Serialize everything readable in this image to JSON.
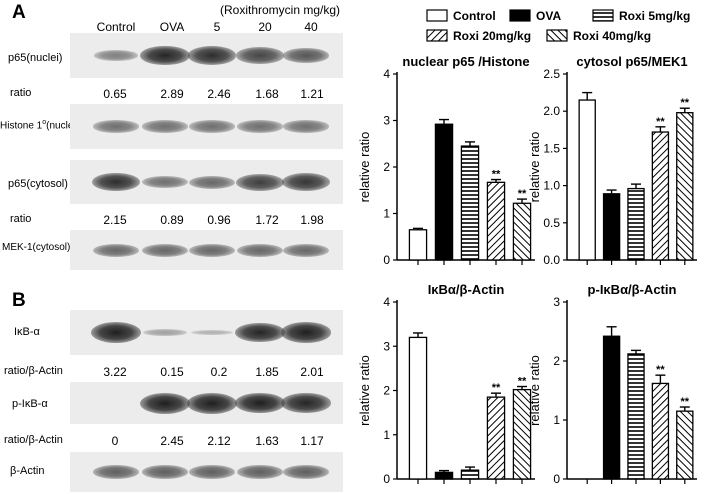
{
  "panelA": {
    "letter": "A",
    "header_label": "(Roxithromycin mg/kg)",
    "lanes": [
      "Control",
      "OVA",
      "5",
      "20",
      "40"
    ],
    "row_labels": {
      "p65_nuclei": "p65(nuclei)",
      "ratio1": "ratio",
      "histone": "Histone 1",
      "histone_sup": "o",
      "histone_suffix": "(nuclei)",
      "p65_cytosol": "p65(cytosol)",
      "ratio2": "ratio",
      "mek": "MEK-1(cytosol)"
    },
    "ratios_nuclear": [
      "0.65",
      "2.89",
      "2.46",
      "1.68",
      "1.21"
    ],
    "ratios_cytosol": [
      "2.15",
      "0.89",
      "0.96",
      "1.72",
      "1.98"
    ]
  },
  "panelB": {
    "letter": "B",
    "row_labels": {
      "ikb": "IκB-α",
      "ratio1": "ratio/β-Actin",
      "pikb": "p-IκB-α",
      "ratio2": "ratio/β-Actin",
      "actin": "β-Actin"
    },
    "ratios_ikb": [
      "3.22",
      "0.15",
      "0.2",
      "1.85",
      "2.01"
    ],
    "ratios_pikb": [
      "0",
      "2.45",
      "2.12",
      "1.63",
      "1.17"
    ]
  },
  "blot_intensity": {
    "p65_nuclei": [
      0.35,
      0.9,
      0.85,
      0.7,
      0.6
    ],
    "histone": [
      0.45,
      0.45,
      0.45,
      0.45,
      0.45
    ],
    "p65_cytosol": [
      0.85,
      0.45,
      0.5,
      0.75,
      0.8
    ],
    "mek": [
      0.5,
      0.5,
      0.5,
      0.5,
      0.5
    ],
    "ikb": [
      1.0,
      0.15,
      0.05,
      0.9,
      0.95
    ],
    "pikb": [
      0.0,
      1.0,
      1.0,
      0.95,
      0.9
    ],
    "actin": [
      0.55,
      0.55,
      0.55,
      0.55,
      0.55
    ]
  },
  "legend": {
    "items": [
      {
        "label": "Control",
        "fill": "white"
      },
      {
        "label": "OVA",
        "fill": "black"
      },
      {
        "label": "Roxi 5mg/kg",
        "fill": "hlines"
      },
      {
        "label": "Roxi 20mg/kg",
        "fill": "hatch"
      },
      {
        "label": "Roxi 40mg/kg",
        "fill": "hatch2"
      }
    ]
  },
  "chart_data": [
    {
      "type": "bar",
      "title": "nuclear p65 /Histone",
      "ylabel": "relative ratio",
      "categories": [
        "Control",
        "OVA",
        "Roxi 5mg/kg",
        "Roxi 20mg/kg",
        "Roxi 40mg/kg"
      ],
      "values": [
        0.65,
        2.92,
        2.45,
        1.67,
        1.22
      ],
      "errors": [
        0.03,
        0.1,
        0.09,
        0.06,
        0.09
      ],
      "annotations": [
        "",
        "",
        "",
        "**",
        "**"
      ],
      "ylim": [
        0,
        4
      ],
      "yticks": [
        "0",
        "1",
        "2",
        "3",
        "4"
      ],
      "ytick_values": [
        0,
        1,
        2,
        3,
        4
      ],
      "fills": [
        "white",
        "black",
        "hlines",
        "hatch",
        "hatch2"
      ]
    },
    {
      "type": "bar",
      "title": "cytosol p65/MEK1",
      "ylabel": "relative ratio",
      "categories": [
        "Control",
        "OVA",
        "Roxi 5mg/kg",
        "Roxi 20mg/kg",
        "Roxi 40mg/kg"
      ],
      "values": [
        2.15,
        0.89,
        0.96,
        1.72,
        1.98
      ],
      "errors": [
        0.1,
        0.05,
        0.06,
        0.07,
        0.06
      ],
      "annotations": [
        "",
        "",
        "",
        "**",
        "**"
      ],
      "ylim": [
        0,
        2.5
      ],
      "yticks": [
        "0.0",
        "0.5",
        "1.0",
        "1.5",
        "2.0",
        "2.5"
      ],
      "ytick_values": [
        0,
        0.5,
        1,
        1.5,
        2,
        2.5
      ],
      "fills": [
        "white",
        "black",
        "hlines",
        "hatch",
        "hatch2"
      ]
    },
    {
      "type": "bar",
      "title": "IκBα/β-Actin",
      "ylabel": "relative ratio",
      "categories": [
        "Control",
        "OVA",
        "Roxi 5mg/kg",
        "Roxi 20mg/kg",
        "Roxi 40mg/kg"
      ],
      "values": [
        3.2,
        0.15,
        0.2,
        1.85,
        2.02
      ],
      "errors": [
        0.1,
        0.04,
        0.07,
        0.09,
        0.07
      ],
      "annotations": [
        "",
        "",
        "",
        "**",
        "**"
      ],
      "ylim": [
        0,
        4
      ],
      "yticks": [
        "0",
        "1",
        "2",
        "3",
        "4"
      ],
      "ytick_values": [
        0,
        1,
        2,
        3,
        4
      ],
      "fills": [
        "white",
        "black",
        "hlines",
        "hatch",
        "hatch2"
      ]
    },
    {
      "type": "bar",
      "title": "p-IκBα/β-Actin",
      "ylabel": "relative ratio",
      "categories": [
        "Control",
        "OVA",
        "Roxi 5mg/kg",
        "Roxi 20mg/kg",
        "Roxi 40mg/kg"
      ],
      "values": [
        0,
        2.42,
        2.12,
        1.62,
        1.15
      ],
      "errors": [
        0,
        0.16,
        0.06,
        0.14,
        0.07
      ],
      "annotations": [
        "",
        "",
        "",
        "**",
        "**"
      ],
      "ylim": [
        0,
        3
      ],
      "yticks": [
        "0",
        "1",
        "2",
        "3"
      ],
      "ytick_values": [
        0,
        1,
        2,
        3
      ],
      "fills": [
        "white",
        "black",
        "hlines",
        "hatch",
        "hatch2"
      ]
    }
  ]
}
